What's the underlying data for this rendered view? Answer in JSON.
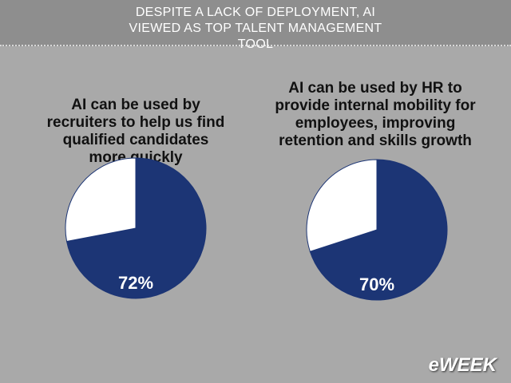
{
  "header": {
    "title": "DESPITE A LACK OF DEPLOYMENT, AI VIEWED AS TOP TALENT MANAGEMENT TOOL"
  },
  "chart_data": [
    {
      "type": "pie",
      "title": "AI can be used by recruiters to help us find qualified candidates more quickly",
      "values": [
        72,
        28
      ],
      "value_labels": [
        "72%",
        null
      ],
      "colors": [
        "#1c3575",
        "#ffffff"
      ]
    },
    {
      "type": "pie",
      "title": "AI can be used by HR to provide internal mobility for employees, improving retention and skills growth",
      "values": [
        70,
        30
      ],
      "value_labels": [
        "70%",
        null
      ],
      "colors": [
        "#1c3575",
        "#ffffff"
      ]
    }
  ],
  "logo": "eWEEK"
}
